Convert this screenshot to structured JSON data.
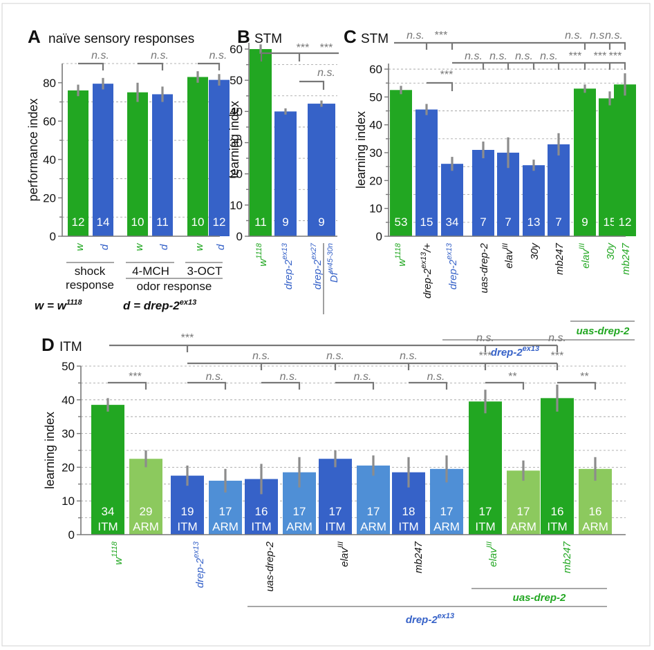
{
  "colors": {
    "green": "#22a722",
    "blue": "#3662c8",
    "light_green": "#8cc95e",
    "light_blue": "#4f8fd6",
    "gray": "#777777",
    "black": "#111111"
  },
  "chart_data": [
    {
      "type": "bar",
      "panel": "A",
      "title": "naïve sensory responses",
      "ylabel": "performance index",
      "ylim": [
        0,
        90
      ],
      "yticks": [
        0,
        20,
        40,
        60,
        80
      ],
      "grid": true,
      "categories": [
        "w",
        "d",
        "w",
        "d",
        "w",
        "d"
      ],
      "groups": [
        "shock response",
        "4-MCH",
        "3-OCT"
      ],
      "group_super_label": "odor response",
      "values": [
        76,
        79.5,
        75,
        74,
        83,
        81.5
      ],
      "errors": [
        3,
        3,
        5,
        4,
        3,
        3
      ],
      "n": [
        "12",
        "14",
        "10",
        "11",
        "10",
        "12"
      ],
      "colors": [
        "green",
        "blue",
        "green",
        "blue",
        "green",
        "blue"
      ],
      "legend": {
        "w": "w = w",
        "w_sup": "1118",
        "d": "d = drep-2",
        "d_sup": "ex13"
      },
      "significance": [
        "n.s.",
        "n.s.",
        "n.s."
      ]
    },
    {
      "type": "bar",
      "panel": "B",
      "title": "STM",
      "ylabel": "learning index",
      "ylim": [
        0,
        62
      ],
      "yticks": [
        0,
        10,
        20,
        30,
        40,
        50,
        60
      ],
      "grid": true,
      "categories": [
        "w1118",
        "drep-2ex13",
        "drep-2ex27 / Df w45-30n"
      ],
      "values": [
        60,
        40,
        42.5
      ],
      "errors": [
        1.5,
        1,
        1
      ],
      "n": [
        "11",
        "9",
        "9"
      ],
      "colors": [
        "green",
        "blue",
        "blue"
      ],
      "significance": [
        "***",
        "***",
        "n.s."
      ]
    },
    {
      "type": "bar",
      "panel": "C",
      "title": "STM",
      "ylabel": "learning index",
      "ylim": [
        0,
        62
      ],
      "yticks": [
        0,
        10,
        20,
        30,
        40,
        50,
        60
      ],
      "grid": true,
      "categories": [
        "w1118",
        "drep-2ex13/+",
        "drep-2ex13",
        "uas-drep-2",
        "elavIII",
        "30y",
        "mb247",
        "elavIII",
        "30y",
        "mb247"
      ],
      "values": [
        52.5,
        45.5,
        26,
        31,
        30,
        25.5,
        33,
        53,
        49.5,
        54.5
      ],
      "errors": [
        1.5,
        2,
        2.5,
        3,
        5.5,
        2,
        4,
        1.5,
        2.5,
        4
      ],
      "n": [
        "53",
        "15",
        "34",
        "7",
        "7",
        "13",
        "7",
        "9",
        "15",
        "12"
      ],
      "colors": [
        "green",
        "blue",
        "blue",
        "blue",
        "blue",
        "blue",
        "blue",
        "green",
        "green",
        "green"
      ],
      "group_labels": [
        "drep-2",
        "uas-drep-2"
      ],
      "group_label_sup": "ex13",
      "significance_top": [
        "n.s.",
        "***",
        "n.s.",
        "n.s.",
        "n.s."
      ],
      "significance_mid": [
        "n.s.",
        "n.s.",
        "n.s.",
        "n.s.",
        "***",
        "***",
        "***"
      ],
      "significance_low": [
        "***"
      ]
    },
    {
      "type": "bar",
      "panel": "D",
      "title": "ITM",
      "ylabel": "learning index",
      "ylim": [
        0,
        50
      ],
      "yticks": [
        0,
        10,
        20,
        30,
        40,
        50
      ],
      "grid": true,
      "categories": [
        "w1118",
        "drep-2ex13",
        "uas-drep-2",
        "elavIII",
        "mb247",
        "elavIII",
        "mb247"
      ],
      "group_labels": [
        "uas-drep-2",
        "drep-2"
      ],
      "group_label_sup": "ex13",
      "series": [
        {
          "name": "ITM",
          "values": [
            38.5,
            17.5,
            16.5,
            22.5,
            18.5,
            39.5,
            40.5
          ],
          "errors": [
            2,
            3,
            4.5,
            2.5,
            4.5,
            3.5,
            4
          ],
          "n": [
            "34",
            "19",
            "16",
            "17",
            "18",
            "17",
            "16"
          ]
        },
        {
          "name": "ARM",
          "values": [
            22.5,
            16,
            18.5,
            20.5,
            19.5,
            19,
            19.5
          ],
          "errors": [
            2.5,
            3.5,
            4.5,
            3,
            4,
            3,
            3.5
          ],
          "n": [
            "29",
            "17",
            "17",
            "17",
            "17",
            "17",
            "16"
          ]
        }
      ],
      "significance_pairs": [
        "***",
        "n.s.",
        "n.s.",
        "n.s.",
        "n.s.",
        "**",
        "**"
      ],
      "significance_top": [
        "***",
        "n.s.",
        "n.s."
      ],
      "significance_mid": [
        "n.s.",
        "n.s.",
        "n.s.",
        "***",
        "***"
      ]
    }
  ]
}
